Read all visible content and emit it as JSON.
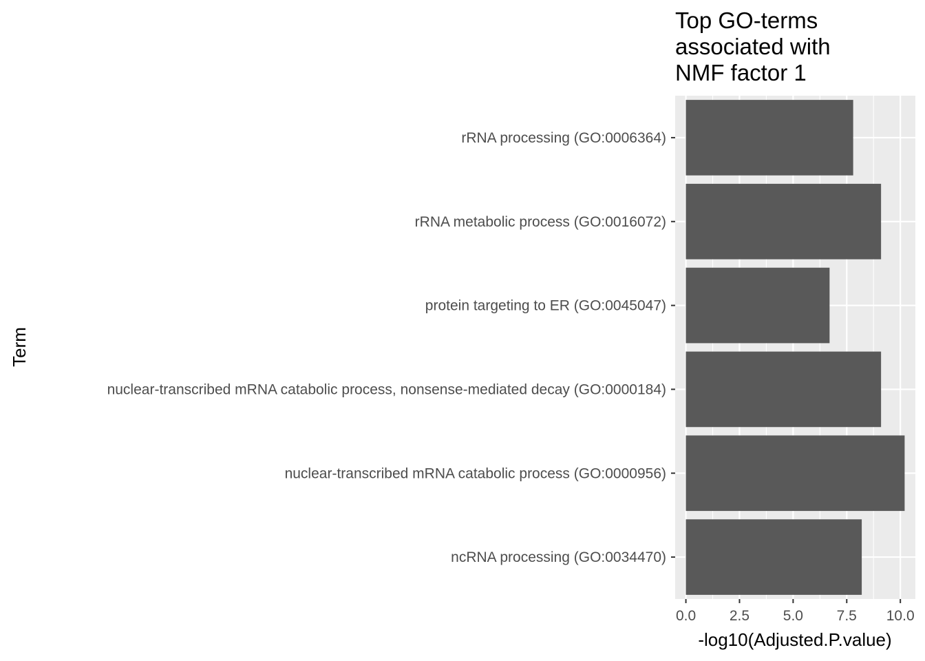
{
  "chart_data": {
    "type": "bar",
    "orientation": "horizontal",
    "title": "Top GO-terms associated with NMF factor 1",
    "title_lines": [
      "Top GO-terms",
      "associated with",
      "NMF factor 1"
    ],
    "xlabel": "-log10(Adjusted.P.value)",
    "ylabel": "Term",
    "categories": [
      "rRNA processing (GO:0006364)",
      "rRNA metabolic process (GO:0016072)",
      "protein targeting to ER (GO:0045047)",
      "nuclear-transcribed mRNA catabolic process, nonsense-mediated decay (GO:0000184)",
      "nuclear-transcribed mRNA catabolic process (GO:0000956)",
      "ncRNA processing (GO:0034470)"
    ],
    "values": [
      7.8,
      9.1,
      6.7,
      9.1,
      10.2,
      8.2
    ],
    "xlim": [
      -0.5,
      10.7
    ],
    "xticks": [
      0.0,
      2.5,
      5.0,
      7.5,
      10.0
    ],
    "xtick_labels": [
      "0.0",
      "2.5",
      "5.0",
      "7.5",
      "10.0"
    ],
    "grid": true,
    "bar_color": "#595959",
    "panel_background": "#ebebeb",
    "grid_color": "#ffffff"
  }
}
